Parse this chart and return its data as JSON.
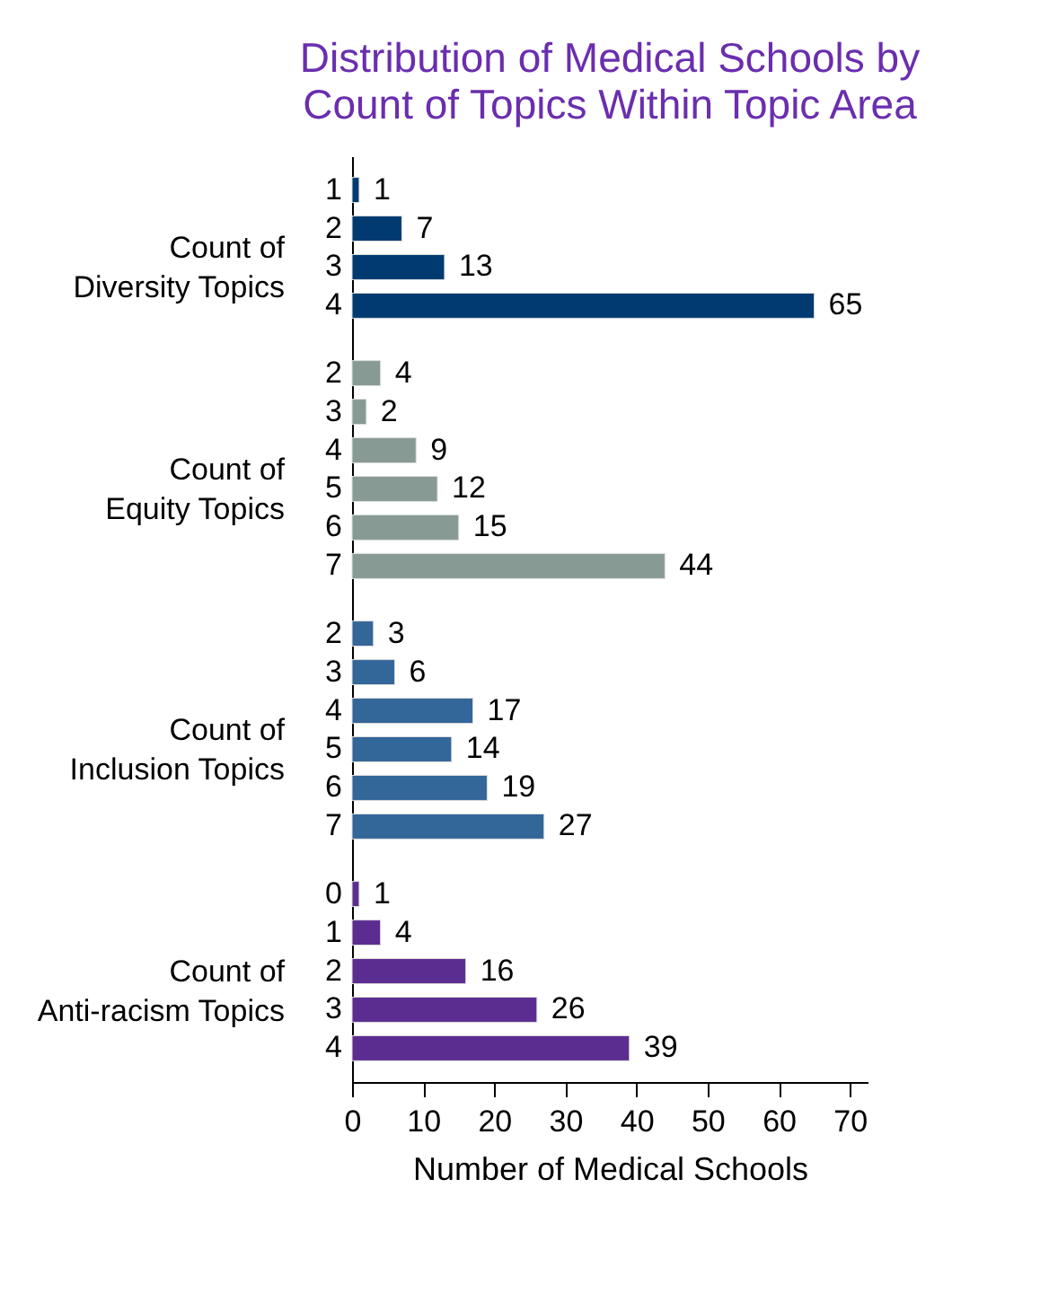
{
  "chart_data": [
    {
      "type": "bar",
      "orientation": "horizontal",
      "title": "Distribution of Medical Schools by Count of Topics Within Topic Area",
      "ylabel": "Count of Diversity Topics",
      "categories": [
        "1",
        "2",
        "3",
        "4"
      ],
      "values": [
        1,
        7,
        13,
        65
      ],
      "color": "#003a70",
      "data_labels": true,
      "tick_labels": "y"
    },
    {
      "type": "bar",
      "orientation": "horizontal",
      "ylabel": "Count of Equity Topics",
      "categories": [
        "2",
        "3",
        "4",
        "5",
        "6",
        "7"
      ],
      "values": [
        4,
        2,
        9,
        12,
        15,
        44
      ],
      "color": "#879a94",
      "data_labels": true,
      "tick_labels": "y"
    },
    {
      "type": "bar",
      "orientation": "horizontal",
      "ylabel": "Count of Inclusion Topics",
      "categories": [
        "2",
        "3",
        "4",
        "5",
        "6",
        "7"
      ],
      "values": [
        3,
        6,
        17,
        14,
        19,
        27
      ],
      "color": "#336699",
      "data_labels": true,
      "tick_labels": "y"
    },
    {
      "type": "bar",
      "orientation": "horizontal",
      "ylabel": "Count of Anti-racism Topics",
      "xlabel": "Number of Medical Schools",
      "categories": [
        "0",
        "1",
        "2",
        "3",
        "4"
      ],
      "values": [
        1,
        4,
        16,
        26,
        39
      ],
      "color": "#5c2d91",
      "xlim": [
        0,
        72.5
      ],
      "xticks": [
        0,
        10,
        20,
        30,
        40,
        50,
        60,
        70
      ],
      "data_labels": true
    }
  ]
}
